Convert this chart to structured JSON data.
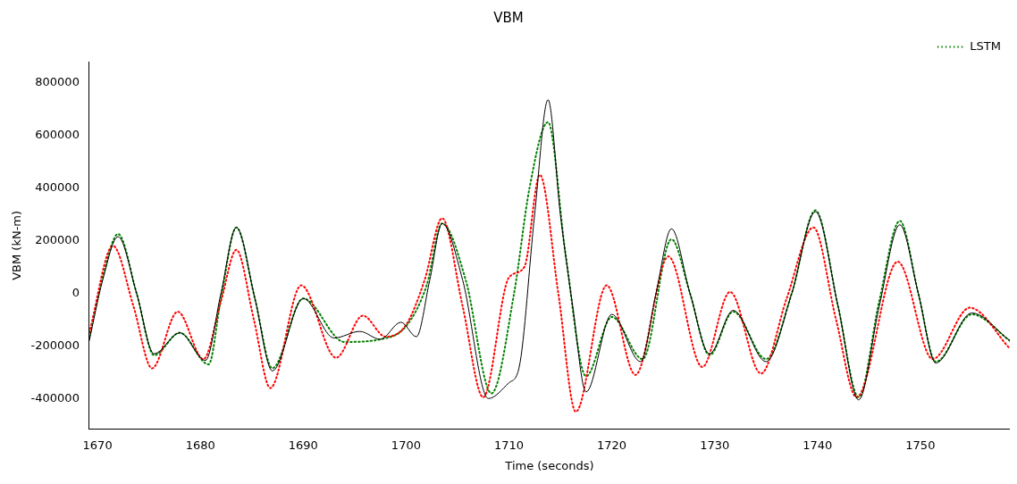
{
  "chart_data": {
    "type": "line",
    "title": "VBM",
    "xlabel": "Time (seconds)",
    "ylabel": "VBM (kN-m)",
    "xlim": [
      1669.2,
      1758.7
    ],
    "xticks": [
      1670,
      1680,
      1690,
      1700,
      1710,
      1720,
      1730,
      1740,
      1750
    ],
    "ylim": [
      -517000,
      880000
    ],
    "yticks": [
      -400000,
      -200000,
      0,
      200000,
      400000,
      600000,
      800000
    ],
    "grid": false,
    "legend": "top right",
    "marker": "none",
    "series": [
      {
        "color": "#000000",
        "line_style": "solid",
        "x": [
          1669.2,
          1670.5,
          1672,
          1673.8,
          1675.5,
          1678,
          1680.5,
          1682,
          1683.5,
          1685.3,
          1687,
          1690,
          1693,
          1695.5,
          1697.5,
          1699.5,
          1701,
          1702.3,
          1703.5,
          1705.5,
          1708,
          1710,
          1711,
          1712.5,
          1713.8,
          1715,
          1716.2,
          1717.5,
          1720,
          1722.8,
          1724.3,
          1725.8,
          1727.6,
          1729.5,
          1731.8,
          1735,
          1737.5,
          1739.8,
          1742,
          1744,
          1746,
          1748,
          1749.8,
          1751.5,
          1755,
          1758.7
        ],
        "values": [
          -180000,
          50000,
          215000,
          0,
          -230000,
          -150000,
          -255000,
          0,
          250000,
          -20000,
          -295000,
          -20000,
          -170000,
          -145000,
          -175000,
          -110000,
          -165000,
          50000,
          265000,
          50000,
          -400000,
          -340000,
          -280000,
          300000,
          735000,
          300000,
          -50000,
          -375000,
          -80000,
          -260000,
          0,
          245000,
          0,
          -230000,
          -65000,
          -260000,
          0,
          310000,
          -50000,
          -405000,
          -50000,
          260000,
          0,
          -265000,
          -75000,
          -180000
        ]
      },
      {
        "color": "#ff0000",
        "line_style": "dotted",
        "x": [
          1669.2,
          1671.5,
          1673.5,
          1675.3,
          1677.8,
          1680.3,
          1682,
          1683.5,
          1685.2,
          1686.8,
          1689.8,
          1693.2,
          1695.8,
          1698,
          1700,
          1701.8,
          1703.5,
          1705.5,
          1707.5,
          1710,
          1711.5,
          1713,
          1714.8,
          1716.5,
          1719.5,
          1722.3,
          1725.5,
          1728.8,
          1731.5,
          1734.5,
          1737,
          1739.6,
          1741.8,
          1743.8,
          1747.8,
          1751.2,
          1754.8,
          1758.7
        ],
        "values": [
          -150000,
          180000,
          -50000,
          -285000,
          -70000,
          -250000,
          -30000,
          165000,
          -100000,
          -360000,
          30000,
          -245000,
          -85000,
          -165000,
          -120000,
          50000,
          285000,
          -50000,
          -395000,
          60000,
          100000,
          450000,
          0,
          -450000,
          30000,
          -310000,
          140000,
          -280000,
          5000,
          -305000,
          -20000,
          250000,
          -100000,
          -395000,
          120000,
          -250000,
          -55000,
          -210000
        ]
      },
      {
        "name": "LSTM",
        "color": "#008000",
        "line_style": "dotted",
        "x": [
          1669.2,
          1670.5,
          1672,
          1673.8,
          1675.5,
          1678,
          1680.8,
          1682,
          1683.5,
          1685.3,
          1687,
          1690,
          1694,
          1697.5,
          1700,
          1702,
          1703.5,
          1705.8,
          1708.3,
          1710.5,
          1712,
          1713.8,
          1715.5,
          1717.5,
          1720,
          1723,
          1725.8,
          1727.6,
          1729.5,
          1731.8,
          1735,
          1737.5,
          1739.8,
          1742,
          1744,
          1746,
          1748,
          1749.8,
          1751.5,
          1755,
          1758.7
        ],
        "values": [
          -165000,
          60000,
          225000,
          0,
          -235000,
          -150000,
          -270000,
          -20000,
          250000,
          -20000,
          -285000,
          -20000,
          -185000,
          -175000,
          -125000,
          30000,
          265000,
          50000,
          -380000,
          0,
          400000,
          650000,
          150000,
          -315000,
          -90000,
          -250000,
          205000,
          0,
          -235000,
          -70000,
          -250000,
          0,
          315000,
          -50000,
          -395000,
          -30000,
          275000,
          0,
          -260000,
          -80000,
          -180000
        ]
      }
    ]
  }
}
